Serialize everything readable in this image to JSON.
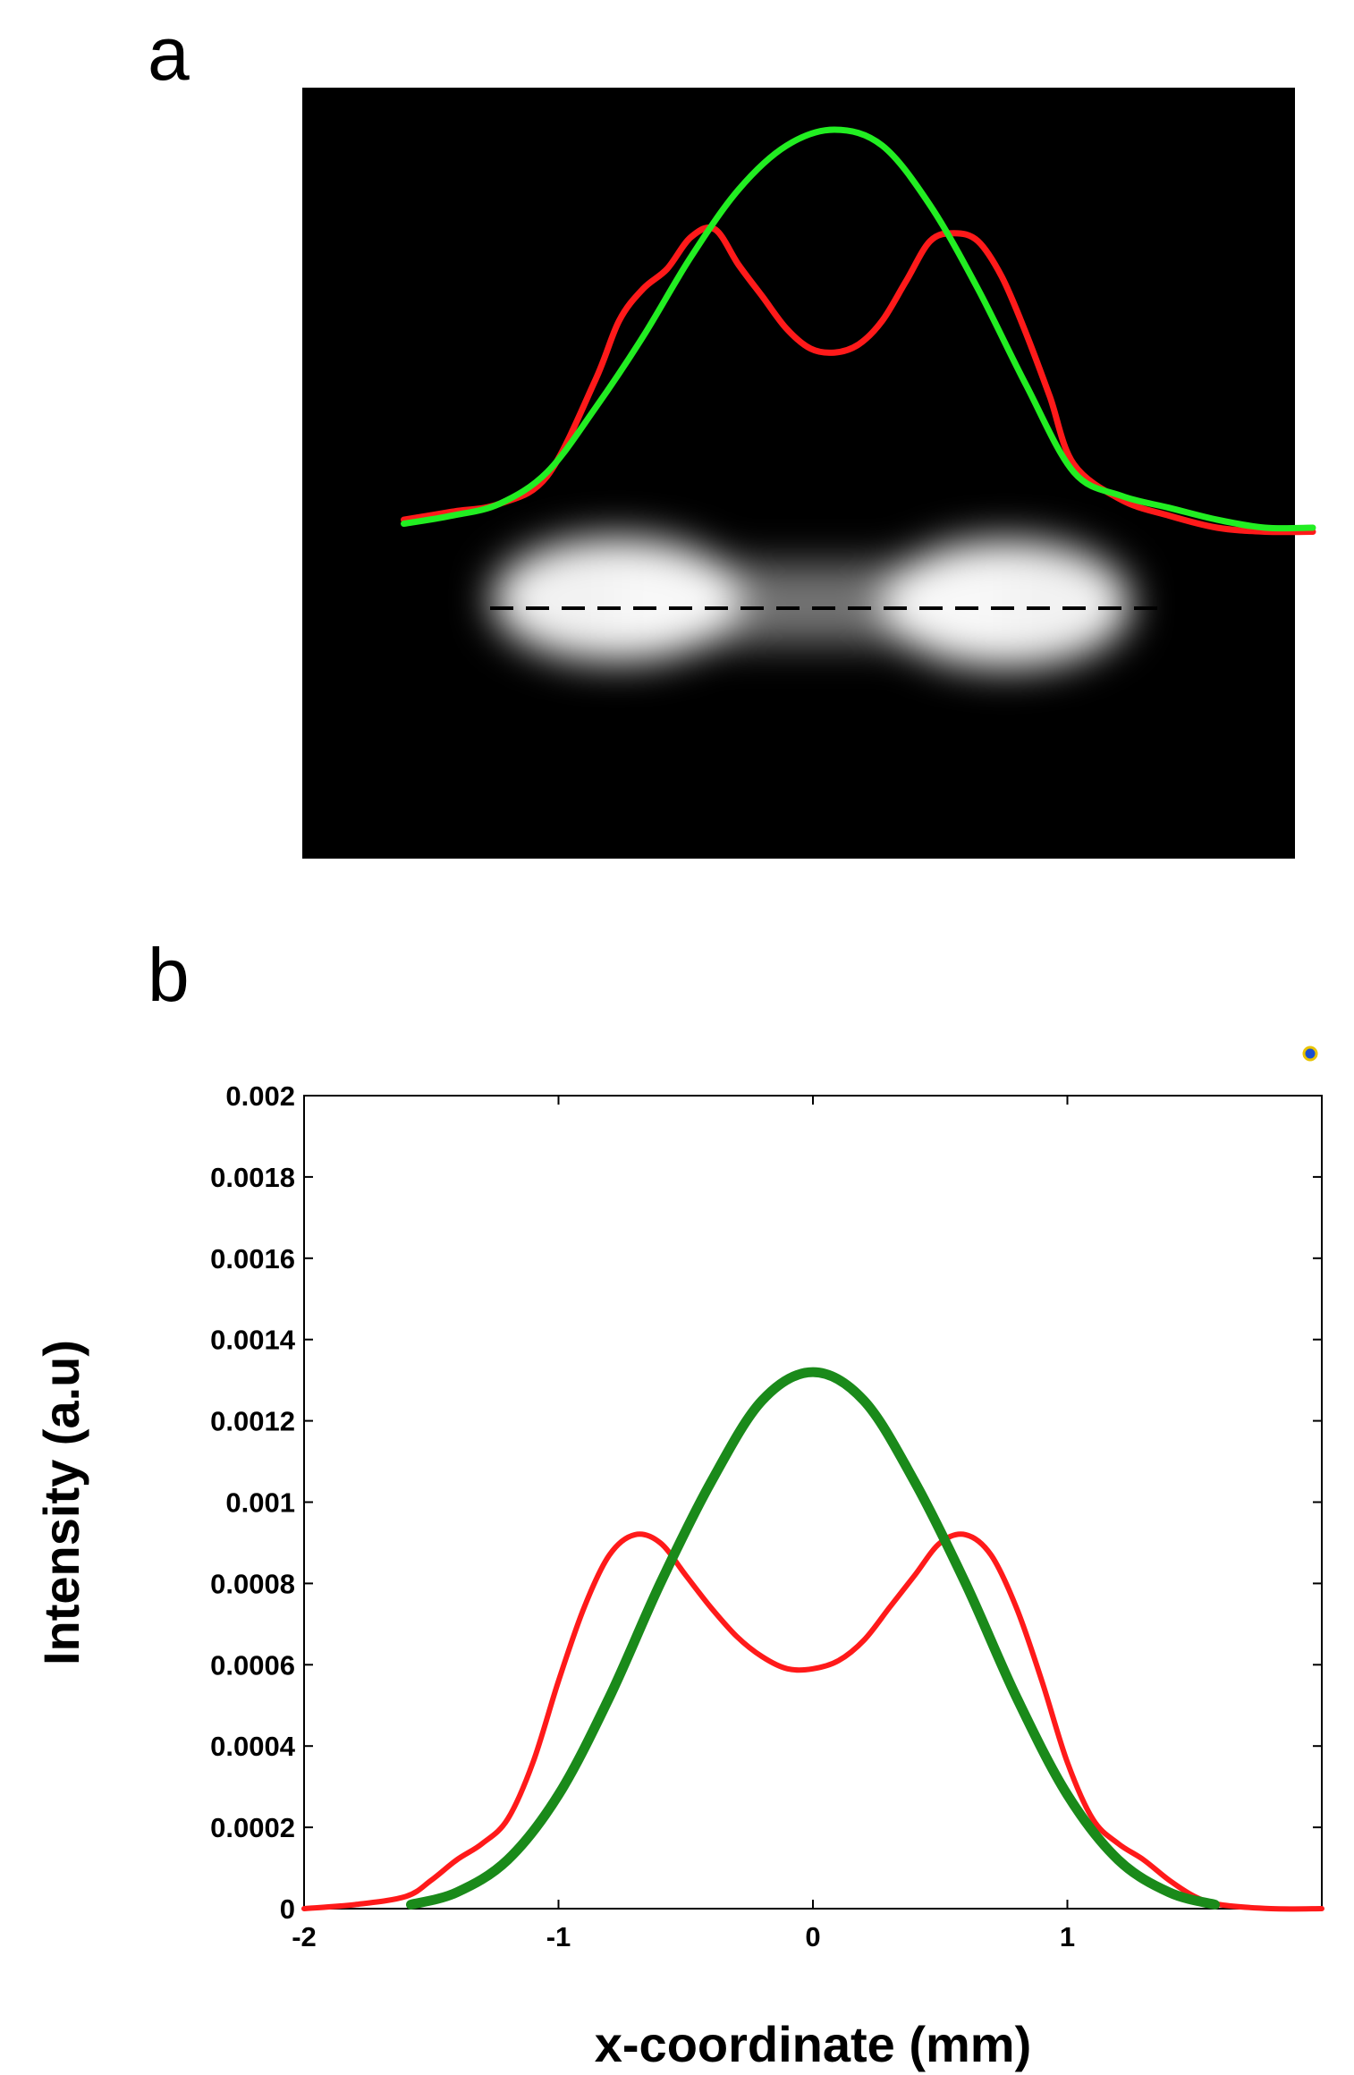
{
  "panels": {
    "a": {
      "label": "a"
    },
    "b": {
      "label": "b"
    }
  },
  "colors": {
    "red": "#ff1a1a",
    "bright_green": "#22ee22",
    "dark_green": "#1a8a1a",
    "image_bg": "#000000"
  },
  "chart_data": [
    {
      "panel": "a",
      "type": "line",
      "title": "",
      "description_kind": "image-overlay",
      "series": [
        {
          "name": "red-profile",
          "x": [
            -1.8,
            -1.6,
            -1.4,
            -1.2,
            -1.0,
            -0.9,
            -0.8,
            -0.7,
            -0.6,
            -0.5,
            -0.4,
            -0.3,
            -0.2,
            -0.1,
            0,
            0.1,
            0.2,
            0.3,
            0.4,
            0.5,
            0.6,
            0.7,
            0.8,
            0.9,
            1.0,
            1.2,
            1.4,
            1.6,
            1.8,
            2.0
          ],
          "y": [
            0.02,
            0.04,
            0.06,
            0.13,
            0.37,
            0.52,
            0.6,
            0.65,
            0.73,
            0.75,
            0.66,
            0.58,
            0.5,
            0.45,
            0.44,
            0.46,
            0.52,
            0.62,
            0.72,
            0.74,
            0.72,
            0.63,
            0.49,
            0.33,
            0.16,
            0.07,
            0.03,
            0.0,
            -0.01,
            -0.01
          ]
        },
        {
          "name": "green-profile",
          "x": [
            -1.8,
            -1.6,
            -1.4,
            -1.2,
            -1.0,
            -0.8,
            -0.6,
            -0.4,
            -0.2,
            0,
            0.2,
            0.4,
            0.6,
            0.8,
            1.0,
            1.2,
            1.4,
            1.6,
            1.8,
            2.0
          ],
          "y": [
            0.01,
            0.03,
            0.06,
            0.14,
            0.3,
            0.48,
            0.68,
            0.85,
            0.96,
            1.0,
            0.96,
            0.81,
            0.6,
            0.36,
            0.14,
            0.08,
            0.05,
            0.02,
            0.0,
            0.0
          ]
        }
      ]
    },
    {
      "panel": "b",
      "type": "line",
      "title": "",
      "xlabel": "x-coordinate (mm)",
      "ylabel": "Intensity (a.u)",
      "xlim": [
        -2,
        2
      ],
      "ylim": [
        0,
        0.002
      ],
      "xticks": [
        -2,
        -1,
        0,
        1
      ],
      "xtick_labels": [
        "-2",
        "-1",
        "0",
        "1"
      ],
      "yticks": [
        0,
        0.0002,
        0.0004,
        0.0006,
        0.0008,
        0.001,
        0.0012,
        0.0014,
        0.0016,
        0.0018,
        0.002
      ],
      "ytick_labels": [
        "0",
        "0.0002",
        "0.0004",
        "0.0006",
        "0.0008",
        "0.001",
        "0.0012",
        "0.0014",
        "0.0016",
        "0.0018",
        "0.002"
      ],
      "grid": false,
      "series": [
        {
          "name": "red",
          "x": [
            -2.0,
            -1.8,
            -1.6,
            -1.5,
            -1.4,
            -1.3,
            -1.2,
            -1.1,
            -1.0,
            -0.9,
            -0.8,
            -0.7,
            -0.6,
            -0.5,
            -0.4,
            -0.3,
            -0.2,
            -0.1,
            0,
            0.1,
            0.2,
            0.3,
            0.4,
            0.5,
            0.6,
            0.7,
            0.8,
            0.9,
            1.0,
            1.1,
            1.2,
            1.3,
            1.4,
            1.5,
            1.6,
            1.8,
            2.0
          ],
          "y": [
            0,
            1e-05,
            3e-05,
            7e-05,
            0.00012,
            0.00016,
            0.00022,
            0.00036,
            0.00056,
            0.00074,
            0.00087,
            0.00092,
            0.0009,
            0.00082,
            0.00074,
            0.00067,
            0.00062,
            0.00059,
            0.00059,
            0.00061,
            0.00066,
            0.00074,
            0.00082,
            0.0009,
            0.00092,
            0.00087,
            0.00074,
            0.00056,
            0.00036,
            0.00022,
            0.00016,
            0.00012,
            7e-05,
            3e-05,
            1e-05,
            0,
            0
          ]
        },
        {
          "name": "green",
          "x": [
            -1.58,
            -1.4,
            -1.2,
            -1.0,
            -0.8,
            -0.6,
            -0.4,
            -0.2,
            0,
            0.2,
            0.4,
            0.6,
            0.8,
            1.0,
            1.2,
            1.4,
            1.58
          ],
          "y": [
            1e-05,
            4e-05,
            0.00012,
            0.00028,
            0.00052,
            0.0008,
            0.00105,
            0.00125,
            0.00132,
            0.00125,
            0.00105,
            0.0008,
            0.00052,
            0.00028,
            0.00012,
            4e-05,
            1e-05
          ]
        }
      ]
    }
  ]
}
